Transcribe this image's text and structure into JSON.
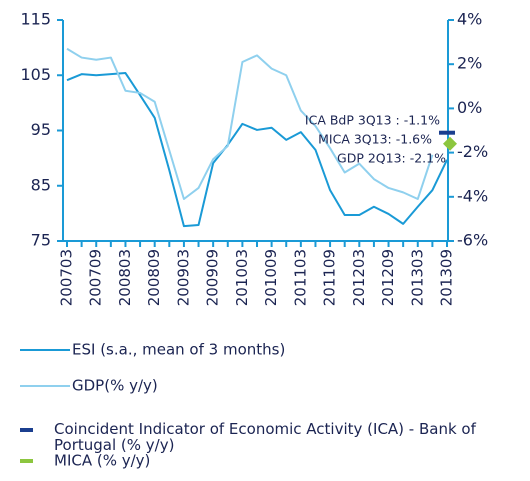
{
  "chart_data": {
    "type": "line",
    "categories": [
      "200703",
      null,
      "200709",
      null,
      "200803",
      null,
      "200809",
      null,
      "200903",
      null,
      "200909",
      null,
      "201003",
      null,
      "201009",
      null,
      "201103",
      null,
      "201109",
      null,
      "201203",
      null,
      "201209",
      null,
      "201303",
      null,
      "201309"
    ],
    "ylim": [
      75,
      115
    ],
    "yticks": [
      75,
      85,
      95,
      105,
      115
    ],
    "y2lim": [
      -6,
      4
    ],
    "y2ticks": [
      {
        "value": -6,
        "label": "-6%"
      },
      {
        "value": -4,
        "label": "-4%"
      },
      {
        "value": -2,
        "label": "-2%"
      },
      {
        "value": 0,
        "label": "0%"
      },
      {
        "value": 2,
        "label": "2%"
      },
      {
        "value": 4,
        "label": "4%"
      }
    ],
    "series": [
      {
        "name": "ESI (s.a., mean of 3 months)",
        "color": "#1a9ad6",
        "marker": "line",
        "values": [
          104.1,
          105.2,
          105,
          105.2,
          105.4,
          101.4,
          97.3,
          87.8,
          77.7,
          77.9,
          89.1,
          92.4,
          96.2,
          95.1,
          95.5,
          93.3,
          94.7,
          91.5,
          84.2,
          79.7,
          79.7,
          81.2,
          79.9,
          78.1,
          81.2,
          84.2,
          89.7
        ]
      },
      {
        "name": "GDP(% y/y)",
        "color": "#8fd0ee",
        "marker": "line",
        "axis": "y2",
        "values": [
          2.7,
          2.3,
          2.2,
          2.3,
          0.8,
          0.7,
          0.3,
          -1.9,
          -4.1,
          -3.6,
          -2.3,
          -1.7,
          2.1,
          2.4,
          1.8,
          1.5,
          -0.1,
          -0.8,
          -1.8,
          -2.9,
          -2.5,
          -3.2,
          -3.6,
          -3.8,
          -4.1,
          -2.1,
          null
        ]
      },
      {
        "name": "Coincident Indicator of Economic Activity (ICA) - Bank of Portugal (% y/y)",
        "color": "#1b3f8f",
        "marker": "dash",
        "axis": "y2",
        "values": [
          null,
          null,
          null,
          null,
          null,
          null,
          null,
          null,
          null,
          null,
          null,
          null,
          null,
          null,
          null,
          null,
          null,
          null,
          null,
          null,
          null,
          null,
          null,
          null,
          null,
          null,
          -1.1
        ]
      },
      {
        "name": "MICA (% y/y)",
        "color": "#8cc63f",
        "marker": "diamond",
        "axis": "y2",
        "values": [
          null,
          null,
          null,
          null,
          null,
          null,
          null,
          null,
          null,
          null,
          null,
          null,
          null,
          null,
          null,
          null,
          null,
          null,
          null,
          null,
          null,
          null,
          null,
          null,
          null,
          null,
          -1.6
        ]
      }
    ],
    "annotations": [
      "ICA BdP 3Q13 :  -1.1%",
      "MICA 3Q13: -1.6%",
      "GDP 2Q13: -2.1%"
    ]
  }
}
